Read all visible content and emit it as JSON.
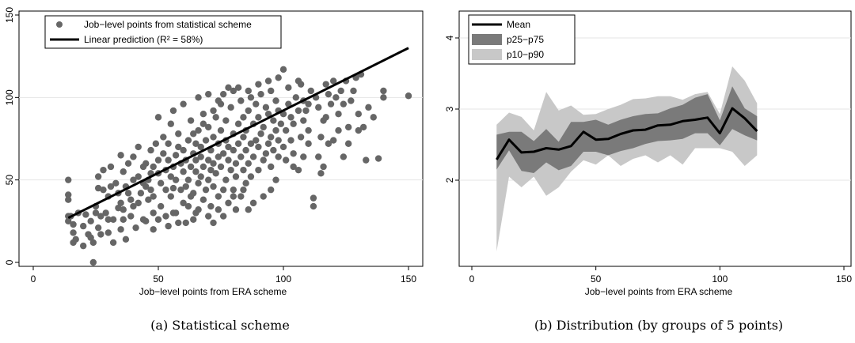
{
  "chart_data": [
    {
      "type": "scatter",
      "caption": "(a) Statistical scheme",
      "xlabel": "Job−level points from ERA scheme",
      "ylabel": "",
      "xlim": [
        0,
        150
      ],
      "ylim": [
        0,
        150
      ],
      "xticks": [
        "0",
        "50",
        "100",
        "150"
      ],
      "yticks": [
        "0",
        "50",
        "100",
        "150"
      ],
      "legend_position": "top-left",
      "legend": [
        "Job−level points from statistical scheme",
        "Linear prediction (R² = 58%)"
      ],
      "colors": {
        "points": "#666666",
        "line": "#000000"
      },
      "fit_line": {
        "x": [
          14,
          150
        ],
        "y": [
          27,
          130
        ]
      },
      "points": [
        [
          14,
          25
        ],
        [
          14,
          28
        ],
        [
          14,
          38
        ],
        [
          14,
          41
        ],
        [
          14,
          50
        ],
        [
          15,
          28
        ],
        [
          16,
          12
        ],
        [
          16,
          18
        ],
        [
          16,
          23
        ],
        [
          17,
          14
        ],
        [
          18,
          30
        ],
        [
          20,
          10
        ],
        [
          20,
          22
        ],
        [
          21,
          29
        ],
        [
          22,
          17
        ],
        [
          23,
          15
        ],
        [
          23,
          25
        ],
        [
          24,
          0
        ],
        [
          24,
          12
        ],
        [
          25,
          30
        ],
        [
          25,
          34
        ],
        [
          26,
          21
        ],
        [
          26,
          45
        ],
        [
          26,
          52
        ],
        [
          27,
          17
        ],
        [
          27,
          28
        ],
        [
          28,
          44
        ],
        [
          28,
          56
        ],
        [
          29,
          30
        ],
        [
          30,
          18
        ],
        [
          30,
          26
        ],
        [
          30,
          40
        ],
        [
          31,
          46
        ],
        [
          31,
          58
        ],
        [
          32,
          12
        ],
        [
          32,
          26
        ],
        [
          33,
          48
        ],
        [
          34,
          33
        ],
        [
          34,
          42
        ],
        [
          35,
          20
        ],
        [
          35,
          36
        ],
        [
          35,
          65
        ],
        [
          36,
          32
        ],
        [
          36,
          55
        ],
        [
          37,
          14
        ],
        [
          37,
          46
        ],
        [
          38,
          42
        ],
        [
          38,
          60
        ],
        [
          39,
          28
        ],
        [
          39,
          38
        ],
        [
          40,
          50
        ],
        [
          40,
          64
        ],
        [
          41,
          21
        ],
        [
          42,
          36
        ],
        [
          42,
          52
        ],
        [
          42,
          70
        ],
        [
          43,
          42
        ],
        [
          44,
          48
        ],
        [
          44,
          58
        ],
        [
          45,
          25
        ],
        [
          45,
          46
        ],
        [
          45,
          60
        ],
        [
          46,
          38
        ],
        [
          46,
          50
        ],
        [
          47,
          44
        ],
        [
          47,
          54
        ],
        [
          47,
          68
        ],
        [
          48,
          30
        ],
        [
          48,
          40
        ],
        [
          48,
          58
        ],
        [
          49,
          72
        ],
        [
          50,
          54
        ],
        [
          50,
          62
        ],
        [
          50,
          88
        ],
        [
          51,
          34
        ],
        [
          51,
          48
        ],
        [
          52,
          66
        ],
        [
          52,
          76
        ],
        [
          53,
          28
        ],
        [
          53,
          44
        ],
        [
          53,
          56
        ],
        [
          54,
          62
        ],
        [
          54,
          72
        ],
        [
          55,
          40
        ],
        [
          55,
          52
        ],
        [
          55,
          84
        ],
        [
          56,
          45
        ],
        [
          56,
          58
        ],
        [
          56,
          92
        ],
        [
          57,
          30
        ],
        [
          57,
          50
        ],
        [
          57,
          65
        ],
        [
          58,
          70
        ],
        [
          58,
          78
        ],
        [
          59,
          44
        ],
        [
          59,
          60
        ],
        [
          60,
          36
        ],
        [
          60,
          55
        ],
        [
          60,
          68
        ],
        [
          60,
          96
        ],
        [
          61,
          24
        ],
        [
          61,
          46
        ],
        [
          61,
          62
        ],
        [
          62,
          50
        ],
        [
          62,
          74
        ],
        [
          63,
          40
        ],
        [
          63,
          58
        ],
        [
          63,
          86
        ],
        [
          64,
          42
        ],
        [
          64,
          66
        ],
        [
          64,
          78
        ],
        [
          65,
          30
        ],
        [
          65,
          55
        ],
        [
          65,
          62
        ],
        [
          65,
          72
        ],
        [
          66,
          48
        ],
        [
          66,
          80
        ],
        [
          66,
          100
        ],
        [
          67,
          52
        ],
        [
          67,
          64
        ],
        [
          67,
          70
        ],
        [
          68,
          38
        ],
        [
          68,
          58
        ],
        [
          68,
          90
        ],
        [
          69,
          44
        ],
        [
          69,
          74
        ],
        [
          70,
          50
        ],
        [
          70,
          62
        ],
        [
          70,
          82
        ],
        [
          70,
          102
        ],
        [
          71,
          34
        ],
        [
          71,
          56
        ],
        [
          71,
          68
        ],
        [
          72,
          46
        ],
        [
          72,
          60
        ],
        [
          72,
          76
        ],
        [
          73,
          54
        ],
        [
          73,
          88
        ],
        [
          74,
          40
        ],
        [
          74,
          64
        ],
        [
          74,
          72
        ],
        [
          75,
          58
        ],
        [
          75,
          80
        ],
        [
          75,
          96
        ],
        [
          76,
          44
        ],
        [
          76,
          66
        ],
        [
          77,
          50
        ],
        [
          77,
          74
        ],
        [
          77,
          86
        ],
        [
          78,
          36
        ],
        [
          78,
          62
        ],
        [
          78,
          70
        ],
        [
          79,
          56
        ],
        [
          79,
          94
        ],
        [
          80,
          44
        ],
        [
          80,
          68
        ],
        [
          80,
          78
        ],
        [
          80,
          104
        ],
        [
          81,
          32
        ],
        [
          81,
          52
        ],
        [
          81,
          60
        ],
        [
          82,
          72
        ],
        [
          82,
          84
        ],
        [
          83,
          40
        ],
        [
          83,
          64
        ],
        [
          83,
          98
        ],
        [
          84,
          56
        ],
        [
          84,
          76
        ],
        [
          84,
          88
        ],
        [
          85,
          48
        ],
        [
          85,
          68
        ],
        [
          85,
          80
        ],
        [
          86,
          60
        ],
        [
          86,
          92
        ],
        [
          87,
          52
        ],
        [
          87,
          72
        ],
        [
          87,
          100
        ],
        [
          88,
          64
        ],
        [
          88,
          84
        ],
        [
          89,
          74
        ],
        [
          89,
          96
        ],
        [
          90,
          56
        ],
        [
          90,
          70
        ],
        [
          90,
          88
        ],
        [
          91,
          78
        ],
        [
          91,
          102
        ],
        [
          92,
          62
        ],
        [
          92,
          82
        ],
        [
          93,
          66
        ],
        [
          93,
          94
        ],
        [
          94,
          72
        ],
        [
          94,
          90
        ],
        [
          95,
          58
        ],
        [
          95,
          76
        ],
        [
          95,
          104
        ],
        [
          96,
          68
        ],
        [
          96,
          86
        ],
        [
          97,
          80
        ],
        [
          97,
          98
        ],
        [
          98,
          64
        ],
        [
          98,
          74
        ],
        [
          98,
          92
        ],
        [
          99,
          84
        ],
        [
          100,
          70
        ],
        [
          100,
          90
        ],
        [
          100,
          117
        ],
        [
          101,
          62
        ],
        [
          101,
          80
        ],
        [
          102,
          96
        ],
        [
          102,
          106
        ],
        [
          103,
          74
        ],
        [
          103,
          88
        ],
        [
          104,
          66
        ],
        [
          104,
          84
        ],
        [
          105,
          100
        ],
        [
          106,
          92
        ],
        [
          106,
          110
        ],
        [
          107,
          76
        ],
        [
          107,
          108
        ],
        [
          108,
          86
        ],
        [
          108,
          98
        ],
        [
          109,
          92
        ],
        [
          110,
          80
        ],
        [
          110,
          96
        ],
        [
          111,
          104
        ],
        [
          112,
          34
        ],
        [
          112,
          39
        ],
        [
          113,
          100
        ],
        [
          114,
          94
        ],
        [
          115,
          76
        ],
        [
          116,
          86
        ],
        [
          117,
          88
        ],
        [
          117,
          108
        ],
        [
          118,
          102
        ],
        [
          118,
          72
        ],
        [
          119,
          96
        ],
        [
          120,
          110
        ],
        [
          121,
          100
        ],
        [
          122,
          90
        ],
        [
          123,
          104
        ],
        [
          124,
          96
        ],
        [
          125,
          110
        ],
        [
          126,
          82
        ],
        [
          127,
          98
        ],
        [
          128,
          104
        ],
        [
          129,
          112
        ],
        [
          130,
          80
        ],
        [
          131,
          114
        ],
        [
          132,
          82
        ],
        [
          134,
          94
        ],
        [
          114,
          64
        ],
        [
          115,
          54
        ],
        [
          116,
          58
        ],
        [
          120,
          74
        ],
        [
          122,
          80
        ],
        [
          124,
          64
        ],
        [
          126,
          72
        ],
        [
          130,
          90
        ],
        [
          133,
          62
        ],
        [
          136,
          88
        ],
        [
          138,
          63
        ],
        [
          140,
          104
        ],
        [
          140,
          100
        ],
        [
          150,
          101
        ],
        [
          108,
          64
        ],
        [
          110,
          72
        ],
        [
          106,
          56
        ],
        [
          104,
          58
        ],
        [
          97,
          50
        ],
        [
          95,
          44
        ],
        [
          92,
          40
        ],
        [
          88,
          36
        ],
        [
          86,
          32
        ],
        [
          84,
          44
        ],
        [
          80,
          40
        ],
        [
          76,
          28
        ],
        [
          74,
          32
        ],
        [
          72,
          24
        ],
        [
          70,
          28
        ],
        [
          66,
          32
        ],
        [
          64,
          26
        ],
        [
          62,
          34
        ],
        [
          58,
          24
        ],
        [
          56,
          30
        ],
        [
          54,
          22
        ],
        [
          50,
          26
        ],
        [
          48,
          20
        ],
        [
          44,
          26
        ],
        [
          40,
          34
        ],
        [
          36,
          26
        ],
        [
          68,
          84
        ],
        [
          72,
          92
        ],
        [
          74,
          98
        ],
        [
          76,
          102
        ],
        [
          78,
          106
        ],
        [
          82,
          106
        ],
        [
          86,
          104
        ],
        [
          90,
          108
        ],
        [
          94,
          110
        ],
        [
          98,
          112
        ]
      ]
    },
    {
      "type": "area",
      "caption": "(b) Distribution (by groups of 5 points)",
      "xlabel": "Job−level points from ERA scheme",
      "ylabel": "",
      "xlim": [
        0,
        150
      ],
      "ylim": [
        1.0,
        4.3
      ],
      "xticks": [
        "0",
        "50",
        "100",
        "150"
      ],
      "yticks": [
        "2",
        "3",
        "4"
      ],
      "legend_position": "top-left",
      "colors": {
        "mean": "#000000",
        "p25_p75": "#7a7a7a",
        "p10_p90": "#c8c8c8"
      },
      "x": [
        10,
        15,
        20,
        25,
        30,
        35,
        40,
        45,
        50,
        55,
        60,
        65,
        70,
        75,
        80,
        85,
        90,
        95,
        100,
        105,
        110,
        115
      ],
      "series": [
        {
          "name": "Mean",
          "values": [
            2.29,
            2.57,
            2.39,
            2.4,
            2.45,
            2.43,
            2.48,
            2.68,
            2.57,
            2.58,
            2.65,
            2.7,
            2.71,
            2.77,
            2.78,
            2.83,
            2.85,
            2.88,
            2.66,
            3.01,
            2.87,
            2.69
          ]
        },
        {
          "name": "p25−p75",
          "values_low": [
            2.15,
            2.42,
            2.13,
            2.1,
            2.25,
            2.14,
            2.2,
            2.4,
            2.4,
            2.35,
            2.41,
            2.45,
            2.51,
            2.55,
            2.56,
            2.58,
            2.66,
            2.66,
            2.49,
            2.72,
            2.63,
            2.56
          ],
          "values_high": [
            2.64,
            2.68,
            2.68,
            2.55,
            2.72,
            2.54,
            2.82,
            2.82,
            2.85,
            2.78,
            2.85,
            2.9,
            2.93,
            2.94,
            3.01,
            3.06,
            3.16,
            3.21,
            2.84,
            3.32,
            3.01,
            2.9
          ]
        },
        {
          "name": "p10−p90",
          "values_low": [
            1.0,
            2.05,
            1.9,
            2.05,
            1.78,
            1.9,
            2.12,
            2.28,
            2.22,
            2.35,
            2.2,
            2.3,
            2.35,
            2.25,
            2.35,
            2.22,
            2.45,
            2.45,
            2.45,
            2.4,
            2.2,
            2.35
          ],
          "values_high": [
            2.78,
            2.95,
            2.89,
            2.7,
            3.24,
            2.98,
            3.05,
            2.92,
            2.93,
            3.0,
            3.06,
            3.14,
            3.15,
            3.18,
            3.18,
            3.13,
            3.21,
            3.24,
            2.93,
            3.6,
            3.4,
            3.08
          ]
        }
      ]
    }
  ]
}
